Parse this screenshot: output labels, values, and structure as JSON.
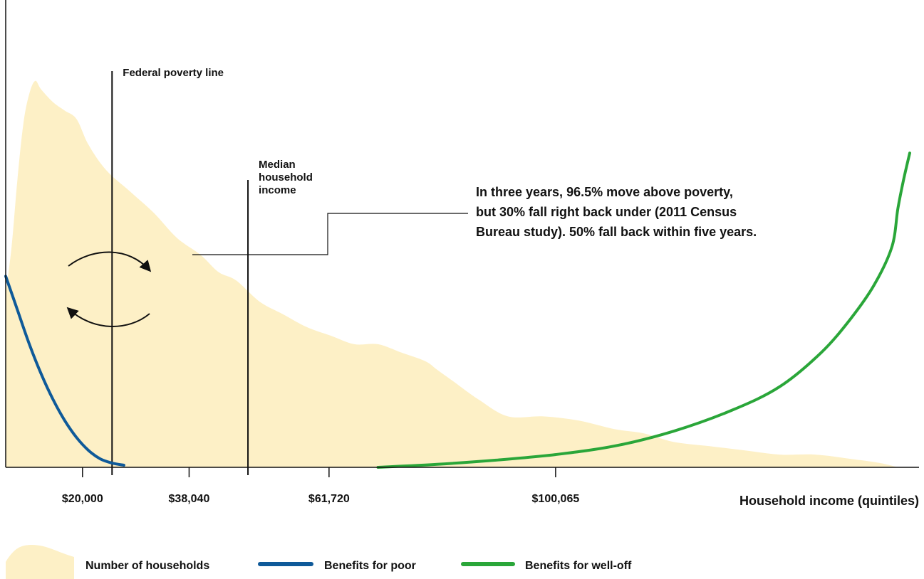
{
  "chart_data": {
    "type": "area",
    "title": "",
    "xlabel": "Household income (quintiles)",
    "ylabel": "",
    "xlim": [
      7000,
      160000
    ],
    "ylim": [
      0,
      100
    ],
    "grid": false,
    "x_ticks": [
      {
        "value": 20000,
        "label": "$20,000"
      },
      {
        "value": 38040,
        "label": "$38,040"
      },
      {
        "value": 61720,
        "label": "$61,720"
      },
      {
        "value": 100065,
        "label": "$100,065"
      }
    ],
    "series": [
      {
        "name": "Number of households",
        "kind": "area",
        "color": "#fdf0c6",
        "points": [
          [
            7000,
            41
          ],
          [
            8000,
            52
          ],
          [
            9000,
            68
          ],
          [
            10000,
            81
          ],
          [
            11000,
            88
          ],
          [
            12000,
            91
          ],
          [
            13000,
            89
          ],
          [
            15000,
            86
          ],
          [
            17000,
            84
          ],
          [
            19000,
            82
          ],
          [
            21000,
            76
          ],
          [
            24000,
            70
          ],
          [
            28000,
            65
          ],
          [
            32000,
            60
          ],
          [
            36000,
            54
          ],
          [
            40000,
            50
          ],
          [
            43000,
            46
          ],
          [
            46000,
            44
          ],
          [
            50000,
            39
          ],
          [
            54000,
            36
          ],
          [
            58000,
            33
          ],
          [
            62000,
            31
          ],
          [
            66000,
            29
          ],
          [
            70000,
            29
          ],
          [
            74000,
            27
          ],
          [
            78000,
            25
          ],
          [
            80000,
            23
          ],
          [
            83000,
            20
          ],
          [
            87000,
            16
          ],
          [
            92000,
            12
          ],
          [
            98000,
            12
          ],
          [
            104000,
            11
          ],
          [
            110000,
            9
          ],
          [
            115000,
            8
          ],
          [
            120000,
            6
          ],
          [
            126000,
            5
          ],
          [
            132000,
            4
          ],
          [
            138000,
            3
          ],
          [
            144000,
            3
          ],
          [
            150000,
            2
          ],
          [
            155000,
            1
          ],
          [
            158000,
            0
          ]
        ]
      },
      {
        "name": "Benefits for poor",
        "kind": "line",
        "color": "#0f5a99",
        "points": [
          [
            7000,
            45
          ],
          [
            9000,
            37
          ],
          [
            11000,
            29
          ],
          [
            13000,
            22
          ],
          [
            15000,
            16
          ],
          [
            17000,
            11
          ],
          [
            19000,
            7
          ],
          [
            21000,
            4
          ],
          [
            23000,
            2
          ],
          [
            25000,
            1
          ],
          [
            27000,
            0.5
          ]
        ]
      },
      {
        "name": "Benefits for well-off",
        "kind": "line",
        "color": "#2aa639",
        "points": [
          [
            70000,
            0
          ],
          [
            80000,
            0.7
          ],
          [
            90000,
            1.7
          ],
          [
            100000,
            3
          ],
          [
            110000,
            5
          ],
          [
            120000,
            8.5
          ],
          [
            130000,
            13.5
          ],
          [
            138000,
            19
          ],
          [
            145000,
            27
          ],
          [
            150000,
            35
          ],
          [
            154000,
            43
          ],
          [
            157000,
            52
          ],
          [
            158000,
            61
          ],
          [
            159000,
            68
          ],
          [
            160000,
            74
          ]
        ]
      }
    ],
    "reference_lines": [
      {
        "x": 25000,
        "label": "Federal poverty line"
      },
      {
        "x": 48000,
        "label": "Median household income",
        "label_lines": [
          "Median",
          "household",
          "income"
        ]
      }
    ],
    "annotation": {
      "lines": [
        "In three years, 96.5% move above poverty,",
        "but 30% fall right back under (2011 Census",
        "Bureau study). 50% fall back within five years."
      ],
      "note": "Circular arrows indicate movement across the federal poverty line"
    },
    "legend": {
      "placement": "bottom",
      "items": [
        {
          "label": "Number of households",
          "swatch": "area",
          "color": "#fdf0c6"
        },
        {
          "label": "Benefits for poor",
          "swatch": "line",
          "color": "#0f5a99"
        },
        {
          "label": "Benefits for well-off",
          "swatch": "line",
          "color": "#2aa639"
        }
      ]
    }
  }
}
